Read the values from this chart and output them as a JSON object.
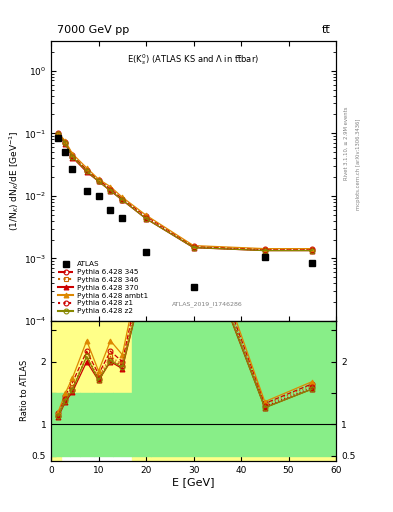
{
  "title_left": "7000 GeV pp",
  "title_right": "tt̅",
  "plot_title": "E(K$_s^0$) (ATLAS KS and Λ in tt̅bar)",
  "watermark": "ATLAS_2019_I1746286",
  "right_label_top": "Rivet 3.1.10, ≥ 2.9M events",
  "right_label_bot": "mcplots.cern.ch [arXiv:1306.3436]",
  "xlabel": "E [GeV]",
  "ylabel_main": "(1/N$_K$) dN$_K$/dE [GeV$^{-1}$]",
  "ylabel_ratio": "Ratio to ATLAS",
  "xlim": [
    0,
    60
  ],
  "ylim_main": [
    0.0001,
    3.0
  ],
  "ylim_ratio": [
    0.42,
    2.65
  ],
  "atlas_x": [
    1.5,
    3.0,
    4.5,
    7.5,
    10.0,
    12.5,
    15.0,
    20.0,
    30.0,
    45.0,
    55.0
  ],
  "atlas_y": [
    0.085,
    0.05,
    0.027,
    0.012,
    0.01,
    0.006,
    0.0045,
    0.00125,
    0.00035,
    0.00105,
    0.00085
  ],
  "mc_x": [
    1.5,
    3.0,
    4.5,
    7.5,
    10.0,
    12.5,
    15.0,
    20.0,
    30.0,
    45.0,
    55.0
  ],
  "mc_345_y": [
    0.1,
    0.073,
    0.045,
    0.026,
    0.018,
    0.013,
    0.009,
    0.0047,
    0.00155,
    0.0014,
    0.0014
  ],
  "mc_346_y": [
    0.098,
    0.071,
    0.043,
    0.025,
    0.0175,
    0.0125,
    0.0088,
    0.0045,
    0.00152,
    0.00138,
    0.00138
  ],
  "mc_370_y": [
    0.095,
    0.068,
    0.041,
    0.024,
    0.017,
    0.012,
    0.0085,
    0.0043,
    0.00148,
    0.00133,
    0.00133
  ],
  "mc_ambt1_y": [
    0.102,
    0.075,
    0.047,
    0.028,
    0.0185,
    0.014,
    0.0095,
    0.0049,
    0.0016,
    0.00143,
    0.00143
  ],
  "mc_z1_y": [
    0.097,
    0.07,
    0.042,
    0.025,
    0.0172,
    0.0122,
    0.0087,
    0.0044,
    0.0015,
    0.00135,
    0.00135
  ],
  "mc_z2_y": [
    0.096,
    0.069,
    0.042,
    0.025,
    0.017,
    0.0121,
    0.0086,
    0.0043,
    0.00149,
    0.00133,
    0.00133
  ],
  "color_345": "#cc0000",
  "color_346": "#cc6600",
  "color_370": "#cc0000",
  "color_ambt1": "#dd8800",
  "color_z1": "#cc0000",
  "color_z2": "#888800",
  "ratio_bin_edges": [
    0,
    2,
    4,
    6,
    9,
    13,
    17,
    21,
    60
  ],
  "ratio_green_lower": [
    0.5,
    0.5,
    0.5,
    0.5,
    0.5,
    0.5,
    0.5,
    0.5
  ],
  "ratio_green_upper": [
    1.5,
    1.5,
    1.5,
    1.5,
    1.5,
    1.5,
    2.65,
    2.65
  ],
  "ratio_yellow_lower": [
    0.42,
    0.62,
    0.62,
    0.62,
    0.62,
    0.62,
    0.42,
    0.42
  ],
  "ratio_yellow_upper": [
    2.65,
    2.65,
    2.65,
    2.65,
    2.65,
    2.65,
    2.65,
    2.65
  ]
}
